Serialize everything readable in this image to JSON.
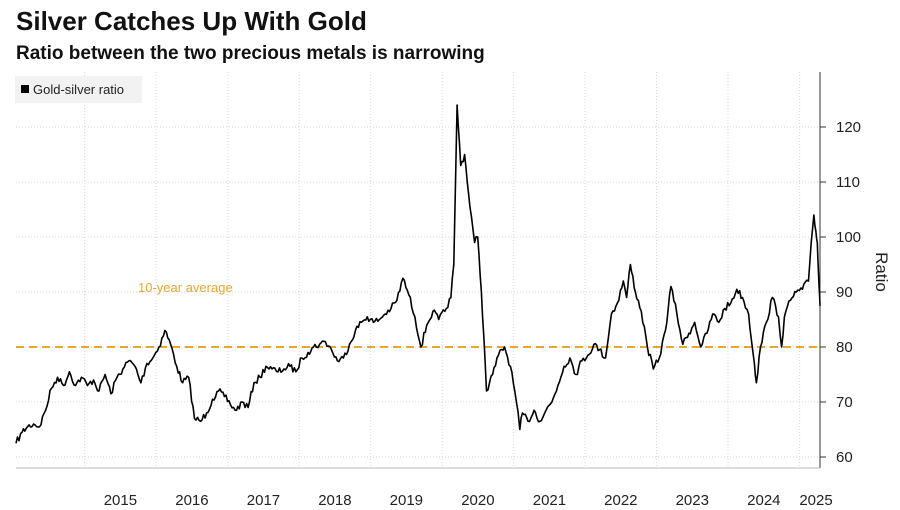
{
  "chart_data": {
    "type": "line",
    "title": "Silver Catches Up With Gold",
    "subtitle": "Ratio between the two precious metals is narrowing",
    "ylabel": "Ratio",
    "xlabel": "",
    "x_range": [
      "2014-01-15",
      "2025-04-15"
    ],
    "ylim": [
      58,
      130
    ],
    "yticks": [
      60,
      70,
      80,
      90,
      100,
      110,
      120
    ],
    "xticks": [
      {
        "label": "2015",
        "date": "2015-01-01"
      },
      {
        "label": "2016",
        "date": "2016-01-01"
      },
      {
        "label": "2017",
        "date": "2017-01-01"
      },
      {
        "label": "2018",
        "date": "2018-01-01"
      },
      {
        "label": "2019",
        "date": "2019-01-01"
      },
      {
        "label": "2020",
        "date": "2020-01-01"
      },
      {
        "label": "2021",
        "date": "2021-01-01"
      },
      {
        "label": "2022",
        "date": "2022-01-01"
      },
      {
        "label": "2023",
        "date": "2023-01-01"
      },
      {
        "label": "2024",
        "date": "2024-01-01"
      },
      {
        "label": "2025",
        "date": "2025-01-01"
      }
    ],
    "grid": true,
    "legend_position": "top-left",
    "series": [
      {
        "name": "Gold-silver ratio",
        "color": "#000000",
        "points": [
          [
            "2014-01-15",
            62.5
          ],
          [
            "2014-02-15",
            64.5
          ],
          [
            "2014-03-15",
            65.5
          ],
          [
            "2014-04-15",
            66.0
          ],
          [
            "2014-05-15",
            65.5
          ],
          [
            "2014-06-15",
            68.5
          ],
          [
            "2014-07-15",
            72.5
          ],
          [
            "2014-08-15",
            74.5
          ],
          [
            "2014-09-15",
            73.0
          ],
          [
            "2014-10-15",
            75.5
          ],
          [
            "2014-11-15",
            73.0
          ],
          [
            "2014-12-15",
            74.5
          ],
          [
            "2015-01-15",
            73.0
          ],
          [
            "2015-02-15",
            74.0
          ],
          [
            "2015-03-15",
            72.0
          ],
          [
            "2015-04-15",
            75.0
          ],
          [
            "2015-05-15",
            71.5
          ],
          [
            "2015-06-15",
            74.5
          ],
          [
            "2015-07-15",
            76.0
          ],
          [
            "2015-08-15",
            77.5
          ],
          [
            "2015-09-15",
            76.5
          ],
          [
            "2015-10-15",
            73.5
          ],
          [
            "2015-11-15",
            77.0
          ],
          [
            "2015-12-15",
            78.0
          ],
          [
            "2016-01-15",
            80.0
          ],
          [
            "2016-02-15",
            83.0
          ],
          [
            "2016-03-15",
            80.5
          ],
          [
            "2016-04-15",
            76.5
          ],
          [
            "2016-05-15",
            73.5
          ],
          [
            "2016-06-15",
            74.5
          ],
          [
            "2016-07-15",
            67.0
          ],
          [
            "2016-08-15",
            66.5
          ],
          [
            "2016-09-15",
            68.0
          ],
          [
            "2016-10-15",
            70.5
          ],
          [
            "2016-11-15",
            72.0
          ],
          [
            "2016-12-15",
            71.0
          ],
          [
            "2017-01-15",
            69.5
          ],
          [
            "2017-02-15",
            68.5
          ],
          [
            "2017-03-15",
            70.0
          ],
          [
            "2017-04-15",
            69.0
          ],
          [
            "2017-05-15",
            73.5
          ],
          [
            "2017-06-15",
            74.5
          ],
          [
            "2017-07-15",
            76.5
          ],
          [
            "2017-08-15",
            76.0
          ],
          [
            "2017-09-15",
            75.5
          ],
          [
            "2017-10-15",
            76.0
          ],
          [
            "2017-11-15",
            76.5
          ],
          [
            "2017-12-15",
            75.5
          ],
          [
            "2018-01-15",
            78.0
          ],
          [
            "2018-02-15",
            79.0
          ],
          [
            "2018-03-15",
            80.0
          ],
          [
            "2018-04-15",
            80.5
          ],
          [
            "2018-05-15",
            81.0
          ],
          [
            "2018-06-15",
            79.5
          ],
          [
            "2018-07-15",
            77.5
          ],
          [
            "2018-08-15",
            78.0
          ],
          [
            "2018-09-15",
            80.5
          ],
          [
            "2018-10-15",
            83.0
          ],
          [
            "2018-11-15",
            84.5
          ],
          [
            "2018-12-15",
            85.5
          ],
          [
            "2019-01-15",
            84.5
          ],
          [
            "2019-02-15",
            85.0
          ],
          [
            "2019-03-15",
            86.0
          ],
          [
            "2019-04-15",
            87.0
          ],
          [
            "2019-05-15",
            88.5
          ],
          [
            "2019-06-15",
            92.5
          ],
          [
            "2019-07-15",
            89.5
          ],
          [
            "2019-08-15",
            85.5
          ],
          [
            "2019-09-15",
            80.0
          ],
          [
            "2019-10-15",
            84.0
          ],
          [
            "2019-11-15",
            86.5
          ],
          [
            "2019-12-15",
            85.0
          ],
          [
            "2020-01-15",
            86.5
          ],
          [
            "2020-02-15",
            89.0
          ],
          [
            "2020-03-01",
            95.0
          ],
          [
            "2020-03-18",
            124.0
          ],
          [
            "2020-04-05",
            113.0
          ],
          [
            "2020-04-25",
            115.0
          ],
          [
            "2020-05-15",
            108.0
          ],
          [
            "2020-06-15",
            99.0
          ],
          [
            "2020-07-01",
            100.0
          ],
          [
            "2020-07-20",
            90.0
          ],
          [
            "2020-08-01",
            82.0
          ],
          [
            "2020-08-15",
            72.0
          ],
          [
            "2020-09-15",
            75.0
          ],
          [
            "2020-10-15",
            78.5
          ],
          [
            "2020-11-15",
            80.0
          ],
          [
            "2020-12-15",
            76.5
          ],
          [
            "2021-01-15",
            70.0
          ],
          [
            "2021-02-01",
            65.0
          ],
          [
            "2021-02-15",
            68.0
          ],
          [
            "2021-03-15",
            66.5
          ],
          [
            "2021-04-15",
            68.5
          ],
          [
            "2021-05-15",
            66.5
          ],
          [
            "2021-06-15",
            68.5
          ],
          [
            "2021-07-15",
            70.0
          ],
          [
            "2021-08-15",
            73.0
          ],
          [
            "2021-09-15",
            76.5
          ],
          [
            "2021-10-15",
            78.0
          ],
          [
            "2021-11-15",
            75.0
          ],
          [
            "2021-12-15",
            77.5
          ],
          [
            "2022-01-15",
            78.5
          ],
          [
            "2022-02-15",
            80.5
          ],
          [
            "2022-03-15",
            79.5
          ],
          [
            "2022-04-15",
            78.0
          ],
          [
            "2022-05-15",
            86.0
          ],
          [
            "2022-06-15",
            88.0
          ],
          [
            "2022-07-15",
            92.0
          ],
          [
            "2022-08-01",
            89.0
          ],
          [
            "2022-08-20",
            95.0
          ],
          [
            "2022-09-15",
            90.0
          ],
          [
            "2022-10-15",
            86.5
          ],
          [
            "2022-11-15",
            80.0
          ],
          [
            "2022-12-15",
            76.0
          ],
          [
            "2023-01-15",
            78.0
          ],
          [
            "2023-02-15",
            83.0
          ],
          [
            "2023-03-15",
            91.0
          ],
          [
            "2023-04-15",
            86.0
          ],
          [
            "2023-05-15",
            80.5
          ],
          [
            "2023-06-15",
            82.5
          ],
          [
            "2023-07-15",
            84.5
          ],
          [
            "2023-08-15",
            80.0
          ],
          [
            "2023-09-15",
            82.5
          ],
          [
            "2023-10-15",
            86.0
          ],
          [
            "2023-11-15",
            84.5
          ],
          [
            "2023-12-15",
            87.0
          ],
          [
            "2024-01-15",
            88.0
          ],
          [
            "2024-02-15",
            90.5
          ],
          [
            "2024-03-15",
            89.0
          ],
          [
            "2024-04-15",
            86.0
          ],
          [
            "2024-05-15",
            77.0
          ],
          [
            "2024-05-25",
            73.5
          ],
          [
            "2024-06-15",
            80.0
          ],
          [
            "2024-07-15",
            84.5
          ],
          [
            "2024-08-15",
            89.0
          ],
          [
            "2024-09-15",
            85.5
          ],
          [
            "2024-10-01",
            80.0
          ],
          [
            "2024-10-15",
            85.5
          ],
          [
            "2024-11-15",
            88.5
          ],
          [
            "2024-12-15",
            90.0
          ],
          [
            "2025-01-15",
            90.5
          ],
          [
            "2025-02-15",
            92.0
          ],
          [
            "2025-03-01",
            99.0
          ],
          [
            "2025-03-15",
            104.0
          ],
          [
            "2025-03-25",
            101.0
          ],
          [
            "2025-04-01",
            99.0
          ],
          [
            "2025-04-08",
            93.0
          ],
          [
            "2025-04-12",
            90.0
          ],
          [
            "2025-04-15",
            87.5
          ]
        ]
      }
    ],
    "reference_line": {
      "value": 80,
      "label": "10-year average",
      "color": "#e8a72c",
      "style": "dashed"
    }
  }
}
